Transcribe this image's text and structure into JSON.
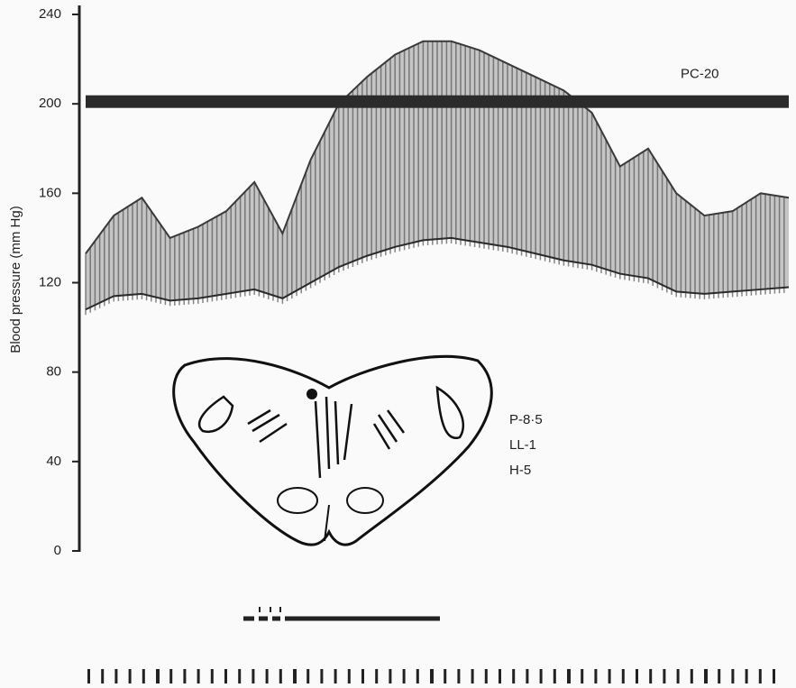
{
  "chart_data": {
    "type": "line",
    "y_label": "Blood pressure (mm Hg)",
    "ylim": [
      0,
      240
    ],
    "yticks": [
      0,
      40,
      80,
      120,
      160,
      200,
      240
    ],
    "grid": false,
    "categories": [
      null,
      null,
      null,
      null,
      null,
      null,
      null,
      null,
      null,
      null,
      null,
      null,
      null,
      null,
      null,
      null,
      null,
      null,
      null,
      null,
      null,
      null,
      null,
      null,
      null,
      null
    ],
    "series": [
      {
        "color": "#3a3a3a",
        "values": [
          133,
          150,
          158,
          140,
          145,
          152,
          165,
          142,
          175,
          200,
          212,
          222,
          228,
          228,
          224,
          218,
          212,
          206,
          196,
          172,
          180,
          160,
          150,
          152,
          160,
          158
        ]
      },
      {
        "color": "#2a2a2a",
        "values": [
          108,
          114,
          115,
          112,
          113,
          115,
          117,
          113,
          120,
          127,
          132,
          136,
          139,
          140,
          138,
          136,
          133,
          130,
          128,
          124,
          122,
          116,
          115,
          116,
          117,
          118
        ]
      }
    ],
    "band_color": "#b8b8b8",
    "reference_line": {
      "value": 201,
      "label": "PC-20",
      "color": "#2b2b2b"
    },
    "annotations": [
      "P-8·5",
      "LL-1",
      "H-5"
    ]
  }
}
